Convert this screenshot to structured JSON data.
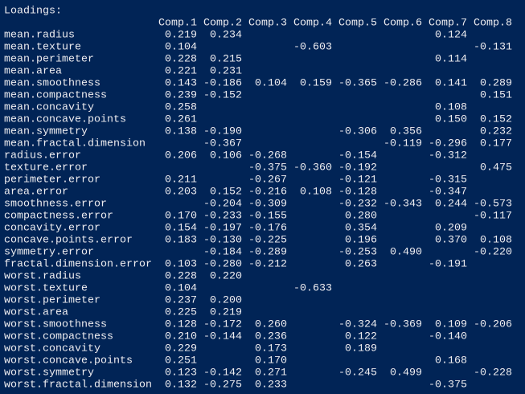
{
  "console": {
    "heading": "Loadings:",
    "columns": [
      "Comp.1",
      "Comp.2",
      "Comp.3",
      "Comp.4",
      "Comp.5",
      "Comp.6",
      "Comp.7",
      "Comp.8"
    ],
    "rows": [
      {
        "name": "mean.radius",
        "values": [
          "0.219",
          "0.234",
          null,
          null,
          null,
          null,
          "0.124",
          null
        ]
      },
      {
        "name": "mean.texture",
        "values": [
          "0.104",
          null,
          null,
          "-0.603",
          null,
          null,
          null,
          "-0.131"
        ]
      },
      {
        "name": "mean.perimeter",
        "values": [
          "0.228",
          "0.215",
          null,
          null,
          null,
          null,
          "0.114",
          null
        ]
      },
      {
        "name": "mean.area",
        "values": [
          "0.221",
          "0.231",
          null,
          null,
          null,
          null,
          null,
          null
        ]
      },
      {
        "name": "mean.smoothness",
        "values": [
          "0.143",
          "-0.186",
          "0.104",
          "0.159",
          "-0.365",
          "-0.286",
          "0.141",
          "0.289"
        ]
      },
      {
        "name": "mean.compactness",
        "values": [
          "0.239",
          "-0.152",
          null,
          null,
          null,
          null,
          null,
          "0.151"
        ]
      },
      {
        "name": "mean.concavity",
        "values": [
          "0.258",
          null,
          null,
          null,
          null,
          null,
          "0.108",
          null
        ]
      },
      {
        "name": "mean.concave.points",
        "values": [
          "0.261",
          null,
          null,
          null,
          null,
          null,
          "0.150",
          "0.152"
        ]
      },
      {
        "name": "mean.symmetry",
        "values": [
          "0.138",
          "-0.190",
          null,
          null,
          "-0.306",
          "0.356",
          null,
          "0.232"
        ]
      },
      {
        "name": "mean.fractal.dimension",
        "values": [
          null,
          "-0.367",
          null,
          null,
          null,
          "-0.119",
          "-0.296",
          "0.177"
        ]
      },
      {
        "name": "radius.error",
        "values": [
          "0.206",
          "0.106",
          "-0.268",
          null,
          "-0.154",
          null,
          "-0.312",
          null
        ]
      },
      {
        "name": "texture.error",
        "values": [
          null,
          null,
          "-0.375",
          "-0.360",
          "-0.192",
          null,
          null,
          "0.475"
        ]
      },
      {
        "name": "perimeter.error",
        "values": [
          "0.211",
          null,
          "-0.267",
          null,
          "-0.121",
          null,
          "-0.315",
          null
        ]
      },
      {
        "name": "area.error",
        "values": [
          "0.203",
          "0.152",
          "-0.216",
          "0.108",
          "-0.128",
          null,
          "-0.347",
          null
        ]
      },
      {
        "name": "smoothness.error",
        "values": [
          null,
          "-0.204",
          "-0.309",
          null,
          "-0.232",
          "-0.343",
          "0.244",
          "-0.573"
        ]
      },
      {
        "name": "compactness.error",
        "values": [
          "0.170",
          "-0.233",
          "-0.155",
          null,
          "0.280",
          null,
          null,
          "-0.117"
        ]
      },
      {
        "name": "concavity.error",
        "values": [
          "0.154",
          "-0.197",
          "-0.176",
          null,
          "0.354",
          null,
          "0.209",
          null
        ]
      },
      {
        "name": "concave.points.error",
        "values": [
          "0.183",
          "-0.130",
          "-0.225",
          null,
          "0.196",
          null,
          "0.370",
          "0.108"
        ]
      },
      {
        "name": "symmetry.error",
        "values": [
          null,
          "-0.184",
          "-0.289",
          null,
          "-0.253",
          "0.490",
          null,
          "-0.220"
        ]
      },
      {
        "name": "fractal.dimension.error",
        "values": [
          "0.103",
          "-0.280",
          "-0.212",
          null,
          "0.263",
          null,
          "-0.191",
          null
        ]
      },
      {
        "name": "worst.radius",
        "values": [
          "0.228",
          "0.220",
          null,
          null,
          null,
          null,
          null,
          null
        ]
      },
      {
        "name": "worst.texture",
        "values": [
          "0.104",
          null,
          null,
          "-0.633",
          null,
          null,
          null,
          null
        ]
      },
      {
        "name": "worst.perimeter",
        "values": [
          "0.237",
          "0.200",
          null,
          null,
          null,
          null,
          null,
          null
        ]
      },
      {
        "name": "worst.area",
        "values": [
          "0.225",
          "0.219",
          null,
          null,
          null,
          null,
          null,
          null
        ]
      },
      {
        "name": "worst.smoothness",
        "values": [
          "0.128",
          "-0.172",
          "0.260",
          null,
          "-0.324",
          "-0.369",
          "0.109",
          "-0.206"
        ]
      },
      {
        "name": "worst.compactness",
        "values": [
          "0.210",
          "-0.144",
          "0.236",
          null,
          "0.122",
          null,
          "-0.140",
          null
        ]
      },
      {
        "name": "worst.concavity",
        "values": [
          "0.229",
          null,
          "0.173",
          null,
          "0.189",
          null,
          null,
          null
        ]
      },
      {
        "name": "worst.concave.points",
        "values": [
          "0.251",
          null,
          "0.170",
          null,
          null,
          null,
          "0.168",
          null
        ]
      },
      {
        "name": "worst.symmetry",
        "values": [
          "0.123",
          "-0.142",
          "0.271",
          null,
          "-0.245",
          "0.499",
          null,
          "-0.228"
        ]
      },
      {
        "name": "worst.fractal.dimension",
        "values": [
          "0.132",
          "-0.275",
          "0.233",
          null,
          null,
          null,
          "-0.375",
          null
        ]
      }
    ]
  }
}
